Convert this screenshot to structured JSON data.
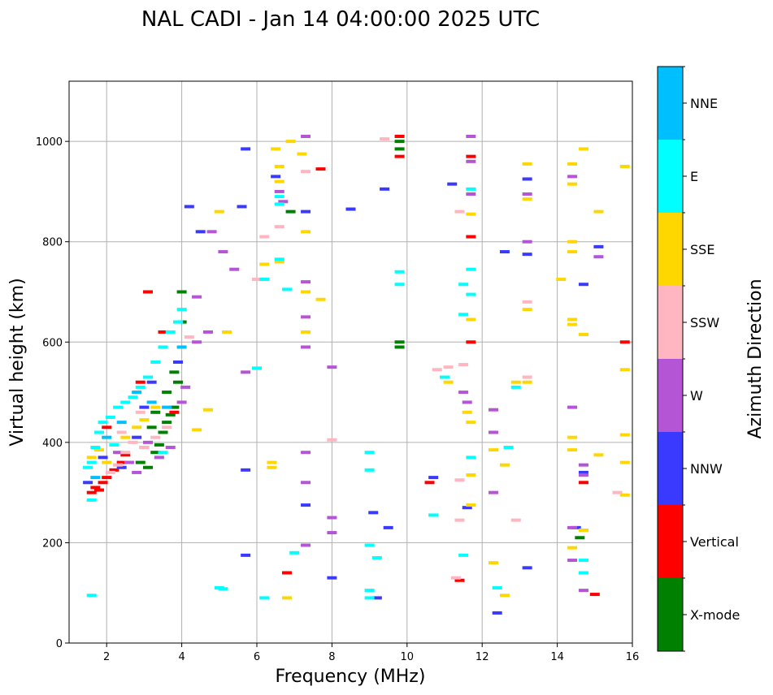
{
  "chart_data": {
    "type": "scatter",
    "title": "NAL CADI - Jan 14 04:00:00 2025 UTC",
    "xlabel": "Frequency (MHz)",
    "ylabel": "Virtual height (km)",
    "xlim": [
      1,
      16
    ],
    "ylim": [
      0,
      1120
    ],
    "xticks": [
      2,
      4,
      6,
      8,
      10,
      12,
      14,
      16
    ],
    "yticks": [
      0,
      200,
      400,
      600,
      800,
      1000
    ],
    "grid": true,
    "colorbar": {
      "label": "Azimuth Direction",
      "categories": [
        "X-mode",
        "Vertical",
        "NNW",
        "W",
        "SSW",
        "SSE",
        "E",
        "NNE"
      ],
      "colors": [
        "#008000",
        "#ff0000",
        "#3a3aff",
        "#b455d6",
        "#ffb6c1",
        "#ffd700",
        "#00ffff",
        "#00bfff"
      ]
    },
    "series": [
      {
        "name": "X-mode",
        "points": [
          [
            3.1,
            350
          ],
          [
            3.3,
            380
          ],
          [
            3.4,
            395
          ],
          [
            3.5,
            420
          ],
          [
            3.6,
            440
          ],
          [
            3.7,
            455
          ],
          [
            3.8,
            470
          ],
          [
            3.9,
            520
          ],
          [
            4.0,
            640
          ],
          [
            4.0,
            700
          ],
          [
            3.2,
            430
          ],
          [
            3.0,
            390
          ],
          [
            2.9,
            360
          ],
          [
            3.6,
            500
          ],
          [
            9.8,
            590
          ],
          [
            9.8,
            600
          ],
          [
            9.8,
            985
          ],
          [
            9.8,
            1000
          ],
          [
            6.9,
            860
          ],
          [
            14.6,
            210
          ],
          [
            3.8,
            540
          ],
          [
            3.3,
            460
          ]
        ]
      },
      {
        "name": "Vertical",
        "points": [
          [
            1.6,
            300
          ],
          [
            1.7,
            310
          ],
          [
            1.8,
            305
          ],
          [
            1.9,
            320
          ],
          [
            2.0,
            330
          ],
          [
            2.2,
            345
          ],
          [
            2.4,
            360
          ],
          [
            2.5,
            375
          ],
          [
            2.9,
            520
          ],
          [
            3.1,
            700
          ],
          [
            9.8,
            1010
          ],
          [
            9.8,
            970
          ],
          [
            7.7,
            945
          ],
          [
            11.7,
            970
          ],
          [
            11.7,
            810
          ],
          [
            11.7,
            600
          ],
          [
            10.6,
            320
          ],
          [
            11.4,
            125
          ],
          [
            14.7,
            320
          ],
          [
            15.0,
            97
          ],
          [
            15.8,
            600
          ],
          [
            6.8,
            140
          ],
          [
            3.8,
            460
          ],
          [
            3.5,
            620
          ],
          [
            2.0,
            430
          ]
        ]
      },
      {
        "name": "NNW",
        "points": [
          [
            1.5,
            320
          ],
          [
            1.9,
            370
          ],
          [
            2.4,
            350
          ],
          [
            2.8,
            410
          ],
          [
            3.0,
            470
          ],
          [
            3.2,
            520
          ],
          [
            4.2,
            870
          ],
          [
            4.5,
            820
          ],
          [
            5.7,
            985
          ],
          [
            5.6,
            870
          ],
          [
            6.5,
            930
          ],
          [
            7.3,
            860
          ],
          [
            8.5,
            865
          ],
          [
            9.4,
            905
          ],
          [
            10.7,
            330
          ],
          [
            11.2,
            915
          ],
          [
            12.6,
            780
          ],
          [
            13.2,
            925
          ],
          [
            13.2,
            775
          ],
          [
            14.7,
            715
          ],
          [
            15.1,
            790
          ],
          [
            14.5,
            230
          ],
          [
            13.2,
            150
          ],
          [
            9.2,
            90
          ],
          [
            7.3,
            275
          ],
          [
            5.7,
            345
          ],
          [
            5.7,
            175
          ],
          [
            8.0,
            130
          ],
          [
            9.1,
            260
          ],
          [
            9.5,
            230
          ],
          [
            11.6,
            270
          ],
          [
            14.7,
            340
          ],
          [
            3.9,
            560
          ],
          [
            12.4,
            60
          ]
        ]
      },
      {
        "name": "W",
        "points": [
          [
            2.3,
            380
          ],
          [
            2.6,
            360
          ],
          [
            2.8,
            340
          ],
          [
            3.1,
            400
          ],
          [
            3.4,
            370
          ],
          [
            3.7,
            390
          ],
          [
            4.0,
            480
          ],
          [
            4.1,
            510
          ],
          [
            4.4,
            690
          ],
          [
            4.4,
            600
          ],
          [
            4.7,
            620
          ],
          [
            5.1,
            780
          ],
          [
            5.7,
            540
          ],
          [
            6.6,
            900
          ],
          [
            6.7,
            880
          ],
          [
            7.3,
            1010
          ],
          [
            7.3,
            650
          ],
          [
            7.3,
            720
          ],
          [
            7.3,
            590
          ],
          [
            7.3,
            380
          ],
          [
            7.3,
            195
          ],
          [
            7.3,
            320
          ],
          [
            8.0,
            550
          ],
          [
            8.0,
            250
          ],
          [
            8.0,
            220
          ],
          [
            11.7,
            1010
          ],
          [
            11.7,
            960
          ],
          [
            11.7,
            895
          ],
          [
            11.5,
            500
          ],
          [
            11.6,
            480
          ],
          [
            12.3,
            465
          ],
          [
            12.3,
            420
          ],
          [
            12.3,
            300
          ],
          [
            13.2,
            895
          ],
          [
            13.2,
            800
          ],
          [
            14.4,
            930
          ],
          [
            14.4,
            470
          ],
          [
            14.4,
            230
          ],
          [
            14.4,
            165
          ],
          [
            14.7,
            105
          ],
          [
            14.7,
            335
          ],
          [
            14.7,
            355
          ],
          [
            15.1,
            770
          ],
          [
            5.4,
            745
          ],
          [
            4.8,
            820
          ]
        ]
      },
      {
        "name": "SSW",
        "points": [
          [
            2.1,
            340
          ],
          [
            2.3,
            355
          ],
          [
            2.5,
            380
          ],
          [
            2.7,
            400
          ],
          [
            3.0,
            390
          ],
          [
            3.3,
            410
          ],
          [
            2.4,
            420
          ],
          [
            2.9,
            460
          ],
          [
            3.6,
            430
          ],
          [
            4.2,
            610
          ],
          [
            6.2,
            810
          ],
          [
            6.6,
            830
          ],
          [
            7.3,
            940
          ],
          [
            9.4,
            1005
          ],
          [
            10.8,
            545
          ],
          [
            11.1,
            550
          ],
          [
            11.4,
            325
          ],
          [
            11.4,
            245
          ],
          [
            11.3,
            130
          ],
          [
            11.5,
            555
          ],
          [
            11.4,
            860
          ],
          [
            12.9,
            245
          ],
          [
            13.2,
            530
          ],
          [
            13.2,
            680
          ],
          [
            15.6,
            300
          ],
          [
            6.0,
            725
          ],
          [
            8.0,
            405
          ]
        ]
      },
      {
        "name": "SSE",
        "points": [
          [
            1.6,
            370
          ],
          [
            1.8,
            385
          ],
          [
            2.0,
            360
          ],
          [
            2.2,
            395
          ],
          [
            2.5,
            410
          ],
          [
            2.8,
            430
          ],
          [
            3.0,
            445
          ],
          [
            3.3,
            470
          ],
          [
            4.4,
            425
          ],
          [
            4.7,
            465
          ],
          [
            5.2,
            620
          ],
          [
            5.0,
            860
          ],
          [
            6.2,
            755
          ],
          [
            6.4,
            360
          ],
          [
            6.4,
            350
          ],
          [
            6.5,
            985
          ],
          [
            6.6,
            950
          ],
          [
            6.6,
            920
          ],
          [
            6.6,
            760
          ],
          [
            6.8,
            90
          ],
          [
            7.2,
            975
          ],
          [
            7.3,
            700
          ],
          [
            7.3,
            620
          ],
          [
            7.3,
            820
          ],
          [
            7.7,
            685
          ],
          [
            11.1,
            520
          ],
          [
            11.6,
            460
          ],
          [
            11.7,
            440
          ],
          [
            11.7,
            645
          ],
          [
            11.7,
            855
          ],
          [
            11.7,
            335
          ],
          [
            11.7,
            275
          ],
          [
            12.3,
            385
          ],
          [
            12.3,
            160
          ],
          [
            12.6,
            355
          ],
          [
            12.6,
            95
          ],
          [
            12.9,
            520
          ],
          [
            13.2,
            955
          ],
          [
            13.2,
            885
          ],
          [
            13.2,
            665
          ],
          [
            13.2,
            520
          ],
          [
            14.4,
            955
          ],
          [
            14.4,
            915
          ],
          [
            14.4,
            800
          ],
          [
            14.4,
            780
          ],
          [
            14.4,
            645
          ],
          [
            14.4,
            635
          ],
          [
            14.4,
            410
          ],
          [
            14.4,
            385
          ],
          [
            14.4,
            190
          ],
          [
            14.7,
            985
          ],
          [
            14.7,
            615
          ],
          [
            14.7,
            225
          ],
          [
            15.1,
            860
          ],
          [
            15.1,
            375
          ],
          [
            15.8,
            950
          ],
          [
            15.8,
            545
          ],
          [
            15.8,
            415
          ],
          [
            15.8,
            360
          ],
          [
            15.8,
            295
          ],
          [
            14.1,
            725
          ],
          [
            6.9,
            1000
          ]
        ]
      },
      {
        "name": "E",
        "points": [
          [
            1.6,
            285
          ],
          [
            1.5,
            350
          ],
          [
            1.6,
            360
          ],
          [
            1.7,
            390
          ],
          [
            1.8,
            420
          ],
          [
            1.9,
            440
          ],
          [
            2.1,
            450
          ],
          [
            2.3,
            470
          ],
          [
            2.5,
            480
          ],
          [
            2.7,
            490
          ],
          [
            2.9,
            510
          ],
          [
            3.1,
            530
          ],
          [
            3.3,
            560
          ],
          [
            3.5,
            590
          ],
          [
            3.7,
            620
          ],
          [
            3.9,
            640
          ],
          [
            4.0,
            665
          ],
          [
            1.6,
            95
          ],
          [
            5.0,
            110
          ],
          [
            5.1,
            108
          ],
          [
            6.0,
            548
          ],
          [
            6.2,
            725
          ],
          [
            6.2,
            90
          ],
          [
            6.6,
            875
          ],
          [
            6.6,
            890
          ],
          [
            6.6,
            765
          ],
          [
            6.8,
            705
          ],
          [
            7.0,
            180
          ],
          [
            9.0,
            380
          ],
          [
            9.0,
            345
          ],
          [
            9.0,
            195
          ],
          [
            9.0,
            105
          ],
          [
            9.0,
            90
          ],
          [
            9.2,
            170
          ],
          [
            9.8,
            740
          ],
          [
            9.8,
            715
          ],
          [
            10.7,
            255
          ],
          [
            11.0,
            530
          ],
          [
            11.5,
            715
          ],
          [
            11.5,
            655
          ],
          [
            11.5,
            175
          ],
          [
            11.7,
            905
          ],
          [
            11.7,
            745
          ],
          [
            11.7,
            695
          ],
          [
            11.7,
            370
          ],
          [
            12.4,
            110
          ],
          [
            12.7,
            390
          ],
          [
            12.9,
            510
          ],
          [
            14.7,
            165
          ],
          [
            14.7,
            140
          ],
          [
            3.5,
            380
          ],
          [
            2.2,
            395
          ]
        ]
      },
      {
        "name": "NNE",
        "points": [
          [
            1.7,
            330
          ],
          [
            2.0,
            410
          ],
          [
            2.4,
            440
          ],
          [
            2.8,
            500
          ],
          [
            3.2,
            480
          ],
          [
            3.6,
            470
          ],
          [
            4.0,
            590
          ]
        ]
      }
    ]
  }
}
